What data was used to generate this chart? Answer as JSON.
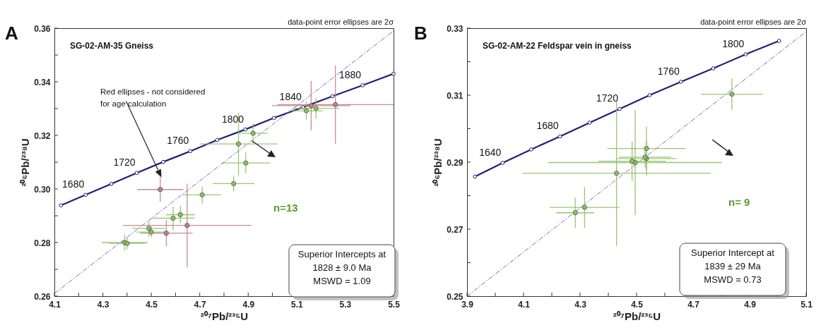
{
  "chart_data": [
    {
      "type": "scatter",
      "title": "SG-02-AM-35  Gneiss",
      "xlabel": "²⁰⁷Pb/²³⁵U",
      "ylabel": "²⁰⁶Pb/²³⁸U",
      "xlim": [
        4.1,
        5.5
      ],
      "ylim": [
        0.26,
        0.36
      ],
      "xticks": [
        4.1,
        {
          "value": 4.2,
          "label": null
        },
        4.3,
        {
          "value": 4.4,
          "label": null
        },
        4.5,
        {
          "value": 4.6,
          "label": null
        },
        4.7,
        {
          "value": 4.8,
          "label": null
        },
        4.9,
        {
          "value": 5.0,
          "label": null
        },
        5.1,
        {
          "value": 5.2,
          "label": null
        },
        5.3,
        {
          "value": 5.4,
          "label": null
        },
        5.5
      ],
      "yticks": [
        0.26,
        {
          "value": 0.27,
          "label": null
        },
        0.28,
        {
          "value": 0.29,
          "label": null
        },
        {
          "value": 0.3,
          "label": "0.30"
        },
        {
          "value": 0.31,
          "label": null
        },
        0.32,
        {
          "value": 0.33,
          "label": null
        },
        0.34,
        {
          "value": 0.35,
          "label": null
        },
        0.36
      ],
      "annotations": [
        "A",
        "data-point error ellipses are 2σ",
        "Red ellipses - not considered\n for age calculation",
        "n=13",
        "Superior Intercepts at\n1828 ± 9.0  Ma\nMSWD = 1.09",
        {
          "text": "1680",
          "x": 4.229,
          "y": 0.2978
        },
        {
          "text": "1720",
          "x": 4.44,
          "y": 0.306
        },
        {
          "text": "1760",
          "x": 4.661,
          "y": 0.3141
        },
        {
          "text": "1800",
          "x": 4.888,
          "y": 0.3222
        },
        {
          "text": "1840",
          "x": 5.126,
          "y": 0.3305
        },
        {
          "text": "1880",
          "x": 5.372,
          "y": 0.3387
        }
      ],
      "series": [
        {
          "type": "line",
          "color": "#1f1f7a",
          "marker": "circle",
          "x": [
            4.127,
            4.229,
            4.335,
            4.44,
            4.549,
            4.661,
            4.772,
            4.888,
            5.006,
            5.126,
            5.248,
            5.372,
            5.5
          ],
          "values": [
            0.2939,
            0.2978,
            0.3019,
            0.306,
            0.3101,
            0.3141,
            0.3183,
            0.3222,
            0.3265,
            0.3305,
            0.3346,
            0.3387,
            0.343
          ]
        },
        {
          "type": "line",
          "color": "#6a6acc",
          "line_style": "dashed",
          "x": [
            4.1,
            5.5
          ],
          "values": [
            0.261,
            0.359
          ]
        },
        {
          "color": "#8fbf63",
          "marker": "circle",
          "x": [
            4.39,
            4.4,
            4.49,
            4.5,
            4.59,
            4.62,
            4.71,
            4.84,
            4.89,
            4.86,
            4.92,
            5.14,
            5.18
          ],
          "values": [
            0.28,
            0.2797,
            0.2853,
            0.2839,
            0.2891,
            0.2904,
            0.2978,
            0.302,
            0.3097,
            0.3168,
            0.3208,
            0.3292,
            0.3301
          ],
          "xerrors": [
            0.095,
            0.075,
            0.068,
            0.06,
            0.089,
            0.06,
            0.078,
            0.086,
            0.1,
            0.16,
            0.06,
            0.068,
            0.097
          ],
          "errors": [
            0.003,
            0.0022,
            0.0029,
            0.002,
            0.0044,
            0.0032,
            0.0032,
            0.0029,
            0.0039,
            0.0117,
            0.0037,
            0.0034,
            0.0039
          ]
        },
        {
          "color": "#c0808a",
          "marker": "circle",
          "x": [
            5.26,
            4.537,
            4.562,
            4.648,
            5.16
          ],
          "values": [
            0.3315,
            0.2998,
            0.2835,
            0.2864,
            0.3311
          ],
          "xerrors": [
            0.24,
            0.095,
            0.108,
            0.265,
            0.162
          ],
          "errors": [
            0.0146,
            0.0046,
            0.0049,
            0.0156,
            0.0092
          ]
        }
      ]
    },
    {
      "type": "scatter",
      "title": "SG-02-AM-22 Feldspar vein in gneiss",
      "xlabel": "²⁰⁷Pb/²³⁵U",
      "ylabel": "²⁰⁶Pb/²³⁸U",
      "xlim": [
        3.9,
        5.1
      ],
      "ylim": [
        0.25,
        0.33
      ],
      "xticks": [
        3.9,
        {
          "value": 4.0,
          "label": null
        },
        4.1,
        {
          "value": 4.2,
          "label": null
        },
        4.3,
        {
          "value": 4.4,
          "label": null
        },
        4.5,
        {
          "value": 4.6,
          "label": null
        },
        4.7,
        {
          "value": 4.8,
          "label": null
        },
        4.9,
        {
          "value": 5.0,
          "label": null
        },
        5.1
      ],
      "yticks": [
        0.25,
        {
          "value": 0.26,
          "label": null
        },
        0.27,
        {
          "value": 0.28,
          "label": null
        },
        0.29,
        {
          "value": 0.3,
          "label": null
        },
        0.31,
        {
          "value": 0.32,
          "label": null
        },
        0.33
      ],
      "annotations": [
        "B",
        "data-point error ellipses are 2σ",
        "n= 9",
        "Superior Intercept at\n1839 ± 29 Ma\nMSWD = 0.73",
        {
          "text": "1640",
          "x": 4.026,
          "y": 0.2898
        },
        {
          "text": "1680",
          "x": 4.229,
          "y": 0.2977
        },
        {
          "text": "1720",
          "x": 4.44,
          "y": 0.3059
        },
        {
          "text": "1760",
          "x": 4.657,
          "y": 0.314
        },
        {
          "text": "1800",
          "x": 4.886,
          "y": 0.3222
        }
      ],
      "series": [
        {
          "type": "line",
          "color": "#1f1f7a",
          "marker": "circle",
          "x": [
            3.928,
            4.026,
            4.127,
            4.229,
            4.334,
            4.44,
            4.546,
            4.657,
            4.771,
            4.886,
            5.004
          ],
          "values": [
            0.2857,
            0.2898,
            0.2938,
            0.2977,
            0.3018,
            0.3059,
            0.31,
            0.314,
            0.318,
            0.3222,
            0.3262
          ]
        },
        {
          "type": "line",
          "color": "#6a6acc",
          "line_style": "dashed",
          "x": [
            3.9,
            5.1
          ],
          "values": [
            0.25,
            0.329
          ]
        },
        {
          "color": "#8fbf63",
          "marker": "circle",
          "x": [
            4.429,
            4.495,
            4.837,
            4.535,
            4.484,
            4.535,
            4.53,
            4.316,
            4.283
          ],
          "values": [
            0.2867,
            0.2899,
            0.3103,
            0.2941,
            0.2903,
            0.2911,
            0.2915,
            0.2765,
            0.2749
          ],
          "xerrors": [
            0.333,
            0.307,
            0.109,
            0.139,
            0.12,
            0.106,
            0.092,
            0.123,
            0.067
          ],
          "errors": [
            0.0217,
            0.0157,
            0.0047,
            0.0065,
            0.0059,
            0.0051,
            0.0031,
            0.0061,
            0.0045
          ]
        }
      ]
    }
  ]
}
